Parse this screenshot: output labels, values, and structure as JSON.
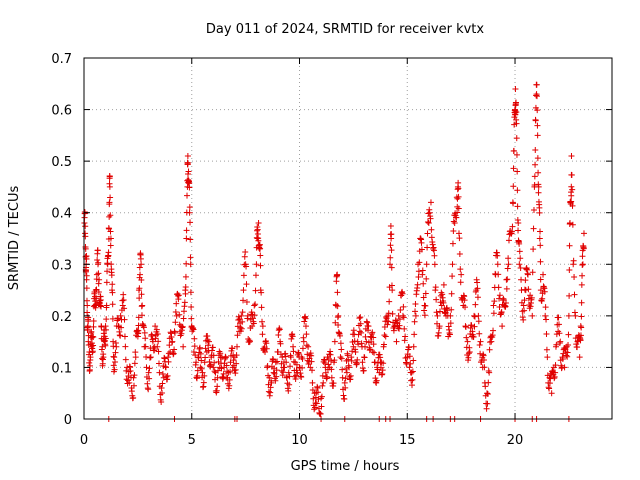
{
  "chart_data": {
    "type": "scatter",
    "title": "Day 011 of 2024, SRMTID for receiver kvtx",
    "xlabel": "GPS time / hours",
    "ylabel": "SRMTID / TECUs",
    "xlim": [
      0,
      24.5
    ],
    "ylim": [
      0,
      0.7
    ],
    "x_ticks": [
      0,
      5,
      10,
      15,
      20
    ],
    "y_ticks": [
      0,
      0.1,
      0.2,
      0.3,
      0.4,
      0.5,
      0.6,
      0.7
    ],
    "x_tick_labels": [
      "0",
      "5",
      "10",
      "15",
      "20"
    ],
    "y_tick_labels": [
      "0",
      "0.1",
      "0.2",
      "0.3",
      "0.4",
      "0.5",
      "0.6",
      "0.7"
    ],
    "grid": true,
    "marker": "+",
    "series_color": "#e00000",
    "series": [
      {
        "name": "SRMTID",
        "points": [
          [
            0.02,
            0.38
          ],
          [
            0.05,
            0.36
          ],
          [
            0.08,
            0.33
          ],
          [
            0.1,
            0.3
          ],
          [
            0.12,
            0.27
          ],
          [
            0.15,
            0.22
          ],
          [
            0.18,
            0.18
          ],
          [
            0.2,
            0.15
          ],
          [
            0.25,
            0.13
          ],
          [
            0.3,
            0.12
          ],
          [
            0.35,
            0.14
          ],
          [
            0.4,
            0.16
          ],
          [
            0.45,
            0.19
          ],
          [
            0.5,
            0.22
          ],
          [
            0.55,
            0.25
          ],
          [
            0.6,
            0.28
          ],
          [
            0.65,
            0.3
          ],
          [
            0.7,
            0.27
          ],
          [
            0.75,
            0.22
          ],
          [
            0.8,
            0.18
          ],
          [
            0.85,
            0.14
          ],
          [
            0.9,
            0.12
          ],
          [
            0.95,
            0.15
          ],
          [
            1.0,
            0.18
          ],
          [
            1.05,
            0.22
          ],
          [
            1.1,
            0.3
          ],
          [
            1.15,
            0.37
          ],
          [
            1.18,
            0.42
          ],
          [
            1.2,
            0.45
          ],
          [
            1.25,
            0.35
          ],
          [
            1.3,
            0.25
          ],
          [
            1.35,
            0.15
          ],
          [
            1.4,
            0.12
          ],
          [
            1.5,
            0.14
          ],
          [
            1.6,
            0.18
          ],
          [
            1.7,
            0.2
          ],
          [
            1.8,
            0.22
          ],
          [
            1.9,
            0.16
          ],
          [
            2.0,
            0.1
          ],
          [
            2.1,
            0.07
          ],
          [
            2.2,
            0.06
          ],
          [
            2.3,
            0.08
          ],
          [
            2.4,
            0.12
          ],
          [
            2.5,
            0.16
          ],
          [
            2.55,
            0.25
          ],
          [
            2.6,
            0.28
          ],
          [
            2.65,
            0.3
          ],
          [
            2.7,
            0.22
          ],
          [
            2.8,
            0.14
          ],
          [
            2.9,
            0.1
          ],
          [
            3.0,
            0.09
          ],
          [
            3.1,
            0.12
          ],
          [
            3.2,
            0.15
          ],
          [
            3.3,
            0.18
          ],
          [
            3.4,
            0.14
          ],
          [
            3.5,
            0.09
          ],
          [
            3.6,
            0.06
          ],
          [
            3.7,
            0.08
          ],
          [
            3.8,
            0.1
          ],
          [
            3.9,
            0.12
          ],
          [
            4.0,
            0.13
          ],
          [
            4.1,
            0.15
          ],
          [
            4.2,
            0.17
          ],
          [
            4.3,
            0.2
          ],
          [
            4.4,
            0.24
          ],
          [
            4.5,
            0.18
          ],
          [
            4.6,
            0.14
          ],
          [
            4.7,
            0.25
          ],
          [
            4.75,
            0.35
          ],
          [
            4.8,
            0.45
          ],
          [
            4.82,
            0.51
          ],
          [
            4.85,
            0.48
          ],
          [
            4.9,
            0.4
          ],
          [
            4.95,
            0.3
          ],
          [
            5.0,
            0.18
          ],
          [
            5.1,
            0.13
          ],
          [
            5.2,
            0.11
          ],
          [
            5.3,
            0.12
          ],
          [
            5.4,
            0.1
          ],
          [
            5.5,
            0.09
          ],
          [
            5.6,
            0.11
          ],
          [
            5.7,
            0.13
          ],
          [
            5.8,
            0.15
          ],
          [
            5.9,
            0.12
          ],
          [
            6.0,
            0.1
          ],
          [
            6.1,
            0.09
          ],
          [
            6.2,
            0.08
          ],
          [
            6.3,
            0.1
          ],
          [
            6.4,
            0.12
          ],
          [
            6.5,
            0.1
          ],
          [
            6.6,
            0.08
          ],
          [
            6.7,
            0.09
          ],
          [
            6.8,
            0.11
          ],
          [
            6.9,
            0.1
          ],
          [
            7.0,
            0.12
          ],
          [
            7.1,
            0.14
          ],
          [
            7.2,
            0.17
          ],
          [
            7.3,
            0.2
          ],
          [
            7.4,
            0.25
          ],
          [
            7.5,
            0.3
          ],
          [
            7.6,
            0.2
          ],
          [
            7.7,
            0.15
          ],
          [
            7.8,
            0.18
          ],
          [
            7.9,
            0.22
          ],
          [
            8.0,
            0.3
          ],
          [
            8.05,
            0.35
          ],
          [
            8.1,
            0.38
          ],
          [
            8.15,
            0.33
          ],
          [
            8.2,
            0.25
          ],
          [
            8.3,
            0.18
          ],
          [
            8.4,
            0.13
          ],
          [
            8.5,
            0.1
          ],
          [
            8.6,
            0.08
          ],
          [
            8.7,
            0.07
          ],
          [
            8.8,
            0.09
          ],
          [
            8.9,
            0.11
          ],
          [
            9.0,
            0.13
          ],
          [
            9.1,
            0.15
          ],
          [
            9.2,
            0.12
          ],
          [
            9.3,
            0.1
          ],
          [
            9.4,
            0.08
          ],
          [
            9.5,
            0.09
          ],
          [
            9.6,
            0.12
          ],
          [
            9.7,
            0.14
          ],
          [
            9.8,
            0.11
          ],
          [
            9.9,
            0.09
          ],
          [
            10.0,
            0.1
          ],
          [
            10.1,
            0.12
          ],
          [
            10.2,
            0.15
          ],
          [
            10.3,
            0.18
          ],
          [
            10.4,
            0.14
          ],
          [
            10.5,
            0.1
          ],
          [
            10.6,
            0.07
          ],
          [
            10.7,
            0.05
          ],
          [
            10.8,
            0.03
          ],
          [
            10.9,
            0.02
          ],
          [
            11.0,
            0.04
          ],
          [
            11.1,
            0.07
          ],
          [
            11.2,
            0.1
          ],
          [
            11.3,
            0.12
          ],
          [
            11.4,
            0.1
          ],
          [
            11.5,
            0.08
          ],
          [
            11.6,
            0.11
          ],
          [
            11.7,
            0.22
          ],
          [
            11.75,
            0.28
          ],
          [
            11.8,
            0.2
          ],
          [
            11.9,
            0.12
          ],
          [
            12.0,
            0.08
          ],
          [
            12.1,
            0.07
          ],
          [
            12.2,
            0.09
          ],
          [
            12.3,
            0.1
          ],
          [
            12.4,
            0.12
          ],
          [
            12.5,
            0.14
          ],
          [
            12.6,
            0.13
          ],
          [
            12.7,
            0.15
          ],
          [
            12.8,
            0.17
          ],
          [
            12.9,
            0.14
          ],
          [
            13.0,
            0.12
          ],
          [
            13.1,
            0.15
          ],
          [
            13.2,
            0.18
          ],
          [
            13.3,
            0.16
          ],
          [
            13.4,
            0.13
          ],
          [
            13.5,
            0.11
          ],
          [
            13.6,
            0.1
          ],
          [
            13.7,
            0.09
          ],
          [
            13.8,
            0.11
          ],
          [
            13.9,
            0.14
          ],
          [
            14.0,
            0.16
          ],
          [
            14.1,
            0.2
          ],
          [
            14.2,
            0.3
          ],
          [
            14.25,
            0.35
          ],
          [
            14.3,
            0.25
          ],
          [
            14.4,
            0.18
          ],
          [
            14.5,
            0.15
          ],
          [
            14.6,
            0.2
          ],
          [
            14.7,
            0.24
          ],
          [
            14.8,
            0.2
          ],
          [
            14.9,
            0.16
          ],
          [
            15.0,
            0.12
          ],
          [
            15.1,
            0.1
          ],
          [
            15.2,
            0.09
          ],
          [
            15.3,
            0.14
          ],
          [
            15.4,
            0.2
          ],
          [
            15.5,
            0.3
          ],
          [
            15.6,
            0.35
          ],
          [
            15.7,
            0.28
          ],
          [
            15.8,
            0.22
          ],
          [
            15.9,
            0.3
          ],
          [
            16.0,
            0.38
          ],
          [
            16.1,
            0.42
          ],
          [
            16.2,
            0.33
          ],
          [
            16.3,
            0.25
          ],
          [
            16.4,
            0.2
          ],
          [
            16.5,
            0.18
          ],
          [
            16.6,
            0.22
          ],
          [
            16.7,
            0.26
          ],
          [
            16.8,
            0.2
          ],
          [
            16.9,
            0.16
          ],
          [
            17.0,
            0.2
          ],
          [
            17.1,
            0.3
          ],
          [
            17.2,
            0.38
          ],
          [
            17.3,
            0.43
          ],
          [
            17.35,
            0.45
          ],
          [
            17.4,
            0.36
          ],
          [
            17.5,
            0.28
          ],
          [
            17.6,
            0.22
          ],
          [
            17.7,
            0.18
          ],
          [
            17.8,
            0.15
          ],
          [
            17.9,
            0.13
          ],
          [
            18.0,
            0.16
          ],
          [
            18.1,
            0.2
          ],
          [
            18.2,
            0.25
          ],
          [
            18.3,
            0.2
          ],
          [
            18.4,
            0.15
          ],
          [
            18.5,
            0.1
          ],
          [
            18.6,
            0.07
          ],
          [
            18.7,
            0.05
          ],
          [
            18.8,
            0.09
          ],
          [
            18.9,
            0.15
          ],
          [
            19.0,
            0.22
          ],
          [
            19.1,
            0.28
          ],
          [
            19.2,
            0.3
          ],
          [
            19.3,
            0.24
          ],
          [
            19.4,
            0.18
          ],
          [
            19.5,
            0.22
          ],
          [
            19.6,
            0.27
          ],
          [
            19.7,
            0.3
          ],
          [
            19.8,
            0.36
          ],
          [
            19.9,
            0.42
          ],
          [
            19.95,
            0.52
          ],
          [
            20.0,
            0.6
          ],
          [
            20.02,
            0.64
          ],
          [
            20.05,
            0.58
          ],
          [
            20.1,
            0.48
          ],
          [
            20.15,
            0.38
          ],
          [
            20.2,
            0.3
          ],
          [
            20.3,
            0.25
          ],
          [
            20.4,
            0.22
          ],
          [
            20.5,
            0.25
          ],
          [
            20.6,
            0.28
          ],
          [
            20.7,
            0.24
          ],
          [
            20.8,
            0.2
          ],
          [
            20.9,
            0.45
          ],
          [
            20.95,
            0.58
          ],
          [
            21.0,
            0.63
          ],
          [
            21.05,
            0.55
          ],
          [
            21.1,
            0.45
          ],
          [
            21.15,
            0.35
          ],
          [
            21.2,
            0.25
          ],
          [
            21.3,
            0.28
          ],
          [
            21.4,
            0.2
          ],
          [
            21.5,
            0.12
          ],
          [
            21.6,
            0.08
          ],
          [
            21.7,
            0.05
          ],
          [
            21.8,
            0.1
          ],
          [
            21.9,
            0.14
          ],
          [
            22.0,
            0.17
          ],
          [
            22.1,
            0.15
          ],
          [
            22.2,
            0.12
          ],
          [
            22.3,
            0.1
          ],
          [
            22.4,
            0.14
          ],
          [
            22.5,
            0.2
          ],
          [
            22.55,
            0.38
          ],
          [
            22.6,
            0.44
          ],
          [
            22.62,
            0.51
          ],
          [
            22.7,
            0.3
          ],
          [
            22.8,
            0.2
          ],
          [
            22.9,
            0.15
          ],
          [
            23.0,
            0.12
          ],
          [
            23.05,
            0.18
          ],
          [
            23.1,
            0.26
          ],
          [
            23.15,
            0.3
          ],
          [
            23.2,
            0.36
          ]
        ],
        "zero_points": [
          1.15,
          4.2,
          7.0,
          7.1,
          11.0,
          12.1,
          13.7,
          14.0,
          14.2,
          15.9,
          16.2,
          17.0,
          17.2,
          18.4,
          20.0,
          20.8,
          21.0,
          22.5
        ]
      }
    ]
  }
}
